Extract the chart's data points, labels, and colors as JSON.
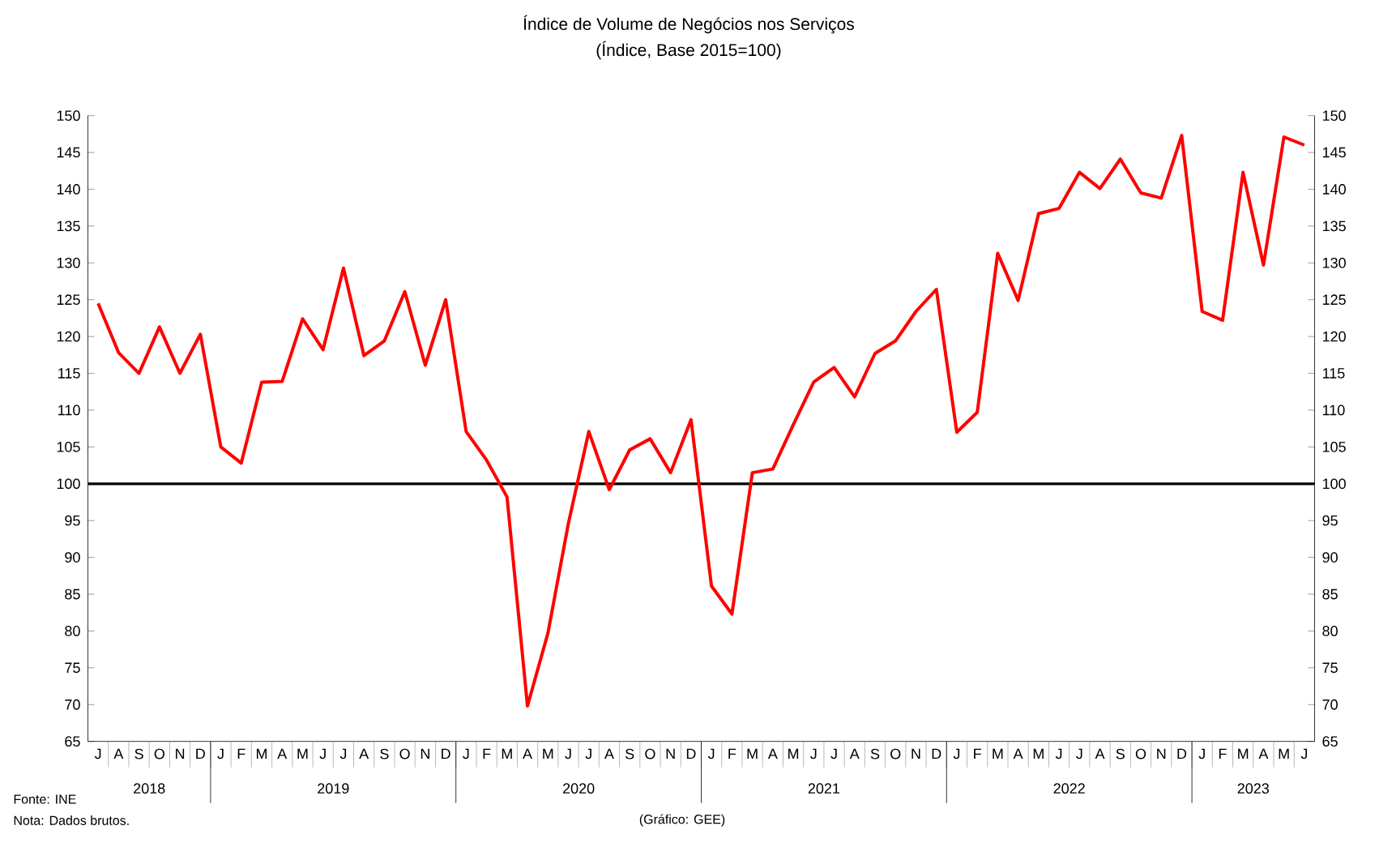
{
  "chart_data": {
    "type": "line",
    "title": "Índice de Volume de Negócios nos Serviços",
    "subtitle": "(Índice, Base 2015=100)",
    "categories": [
      "J",
      "A",
      "S",
      "O",
      "N",
      "D",
      "J",
      "F",
      "M",
      "A",
      "M",
      "J",
      "J",
      "A",
      "S",
      "O",
      "N",
      "D",
      "J",
      "F",
      "M",
      "A",
      "M",
      "J",
      "J",
      "A",
      "S",
      "O",
      "N",
      "D",
      "J",
      "F",
      "M",
      "A",
      "M",
      "J",
      "J",
      "A",
      "S",
      "O",
      "N",
      "D",
      "J",
      "F",
      "M",
      "A",
      "M",
      "J",
      "J",
      "A",
      "S",
      "O",
      "N",
      "D",
      "J",
      "F",
      "M",
      "A",
      "M",
      "J"
    ],
    "series": [
      {
        "color": "#ff0000",
        "values": [
          124.5,
          117.8,
          115,
          121.3,
          115,
          120.3,
          105,
          102.8,
          113.8,
          113.9,
          122.4,
          118.2,
          129.3,
          117.4,
          119.4,
          126.1,
          116.1,
          125,
          107.1,
          103.2,
          98.2,
          69.8,
          79.7,
          94.6,
          107.1,
          99.2,
          104.6,
          106.1,
          101.5,
          108.7,
          86.1,
          82.3,
          101.5,
          102,
          108,
          113.8,
          115.8,
          111.8,
          117.7,
          119.4,
          123.4,
          126.4,
          107,
          109.7,
          131.3,
          124.9,
          136.7,
          137.4,
          142.3,
          140.1,
          144.1,
          139.5,
          138.8,
          147.3,
          123.4,
          122.2,
          142.3,
          129.7,
          147.1,
          146
        ]
      }
    ],
    "line_style": "solid",
    "ylim": [
      65,
      150
    ],
    "yticks": [
      65,
      70,
      75,
      80,
      85,
      90,
      95,
      100,
      105,
      110,
      115,
      120,
      125,
      130,
      135,
      140,
      145,
      150
    ],
    "y2lim": [
      65,
      150
    ],
    "y2ticks": [
      65,
      70,
      75,
      80,
      85,
      90,
      95,
      100,
      105,
      110,
      115,
      120,
      125,
      130,
      135,
      140,
      145,
      150
    ],
    "ref_lines": [
      {
        "axis": "y",
        "value": 100,
        "color": "#000000"
      }
    ],
    "annotations": [
      "2018",
      "2019",
      "2020",
      "2021",
      "2022",
      "2023",
      "Fonte: INE",
      "Nota: Dados brutos.",
      "(Gráfico: GEE)"
    ]
  }
}
